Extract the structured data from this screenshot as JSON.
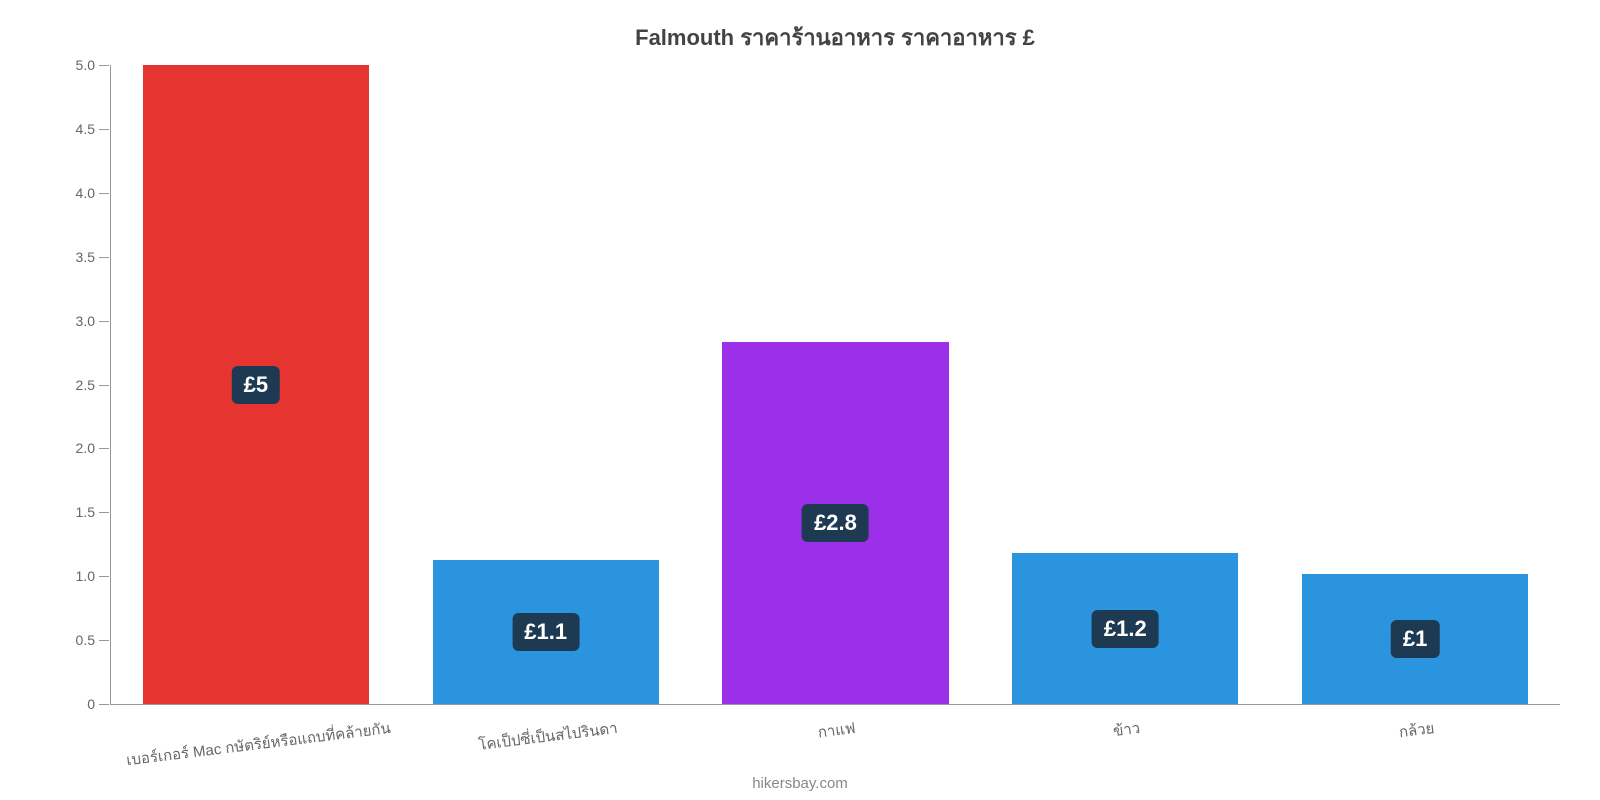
{
  "chart": {
    "type": "bar",
    "title": "Falmouth ราคาร้านอาหาร ราคาอาหาร £",
    "title_fontsize": 22,
    "title_color": "#434343",
    "background_color": "#ffffff",
    "axis_color": "#999999",
    "label_color": "#666666",
    "ylim": [
      0,
      5.0
    ],
    "ytick_step": 0.5,
    "yticks": [
      "0",
      "0.5",
      "1.0",
      "1.5",
      "2.0",
      "2.5",
      "3.0",
      "3.5",
      "4.0",
      "4.5",
      "5.0"
    ],
    "bar_width_pct": 78,
    "value_badge": {
      "bg": "#1e3a52",
      "color": "#ffffff",
      "fontsize": 22,
      "radius": 6
    },
    "xlabel_fontsize": 15,
    "xlabel_rotate_deg": -7,
    "categories": [
      {
        "label": "เบอร์เกอร์ Mac กษัตริย์หรือแถบที่คล้ายกัน",
        "value": 5.0,
        "value_label": "£5",
        "color": "#e63531"
      },
      {
        "label": "โคเป็ปซี่เป็นสไปรินดา",
        "value": 1.13,
        "value_label": "£1.1",
        "color": "#2a94df"
      },
      {
        "label": "กาแฟ",
        "value": 2.83,
        "value_label": "£2.8",
        "color": "#9b30e8"
      },
      {
        "label": "ข้าว",
        "value": 1.18,
        "value_label": "£1.2",
        "color": "#2a94df"
      },
      {
        "label": "กล้วย",
        "value": 1.02,
        "value_label": "£1",
        "color": "#2a94df"
      }
    ],
    "attribution": "hikersbay.com",
    "attribution_color": "#888888",
    "attribution_fontsize": 15
  }
}
